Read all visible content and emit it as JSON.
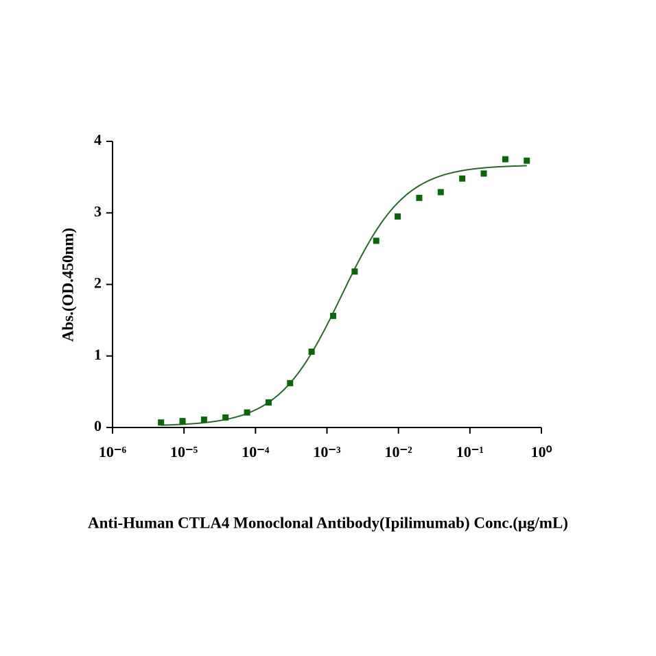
{
  "chart_data": {
    "type": "scatter",
    "x_label": "Anti-Human CTLA4 Monoclonal Antibody(Ipilimumab)  Conc.(μg/mL)",
    "y_label": "Abs.(OD.450nm)",
    "x": [
      4.77e-06,
      9.54e-06,
      1.907e-05,
      3.81e-05,
      7.63e-05,
      0.0001526,
      0.000305,
      0.00061,
      0.001221,
      0.002441,
      0.004883,
      0.009766,
      0.01953,
      0.0390625,
      0.078125,
      0.15625,
      0.3125,
      0.625
    ],
    "series": [
      {
        "color": "#0b650b",
        "values": [
          0.07,
          0.09,
          0.11,
          0.14,
          0.21,
          0.35,
          0.62,
          1.06,
          1.56,
          2.18,
          2.61,
          2.95,
          3.21,
          3.29,
          3.48,
          3.55,
          3.75,
          3.73
        ]
      }
    ],
    "fit": {
      "bottom": 0.02,
      "top": 3.67,
      "ec50": 0.0016,
      "hill": 0.98,
      "color": "#2a662a"
    },
    "xscale": "log",
    "xlim": [
      1e-06,
      1
    ],
    "xticks": [
      {
        "value": 1e-06,
        "label": "10⁻⁶"
      },
      {
        "value": 1e-05,
        "label": "10⁻⁵"
      },
      {
        "value": 0.0001,
        "label": "10⁻⁴"
      },
      {
        "value": 0.001,
        "label": "10⁻³"
      },
      {
        "value": 0.01,
        "label": "10⁻²"
      },
      {
        "value": 0.1,
        "label": "10⁻¹"
      },
      {
        "value": 1,
        "label": "10⁰"
      }
    ],
    "ylim": [
      0,
      4
    ],
    "yticks": [
      0,
      1,
      2,
      3,
      4
    ]
  }
}
